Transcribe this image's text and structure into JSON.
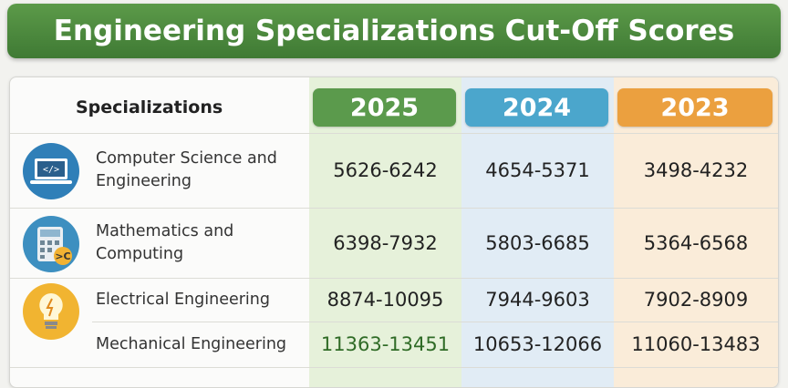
{
  "header": {
    "title": "Engineering Specializations Cut-Off Scores"
  },
  "table": {
    "columns": [
      "Specializations",
      "2025",
      "2024",
      "2023"
    ],
    "rows": [
      [
        "Computer Science and Engineering",
        "5626-6242",
        "4654-5371",
        "3498-4232"
      ],
      [
        "Mathematics and Computing",
        "6398-7932",
        "5803-6685",
        "5364-6568"
      ],
      [
        "Electrical Engineering",
        "8874-10095",
        "7944-9603",
        "7902-8909"
      ],
      [
        "Mechanical Engineering",
        "11363-13451",
        "10653-12066",
        "11060-13483"
      ]
    ]
  }
}
